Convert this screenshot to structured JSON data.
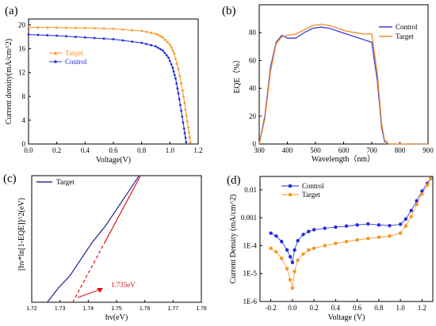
{
  "colors": {
    "target_orange": "#F7941D",
    "control_blue": "#1F2BE0",
    "eqe_control": "#3A3FD6",
    "eqe_target": "#F08A24",
    "fit_red": "#E01010",
    "target_navy": "#2E3192"
  },
  "chart_data": [
    {
      "panel_label": "(a)",
      "type": "line",
      "xlabel": "Voltage(V)",
      "ylabel": "Current density(mA/cm^2)",
      "xlim": [
        0.0,
        1.2
      ],
      "ylim": [
        0,
        21
      ],
      "x_ticks": [
        "0.0",
        "0.2",
        "0.4",
        "0.6",
        "0.8",
        "1.0",
        "1.2"
      ],
      "y_ticks": [
        "0",
        "4",
        "8",
        "12",
        "16",
        "20"
      ],
      "legend": {
        "position": "center-left",
        "entries": [
          "Target",
          "Control"
        ]
      },
      "series": [
        {
          "name": "Target",
          "color_key": "target_orange",
          "marker": "star",
          "x": [
            0.0,
            0.2,
            0.4,
            0.6,
            0.8,
            0.9,
            0.95,
            1.0,
            1.03,
            1.06,
            1.09,
            1.11,
            1.13,
            1.145
          ],
          "y": [
            19.6,
            19.55,
            19.5,
            19.35,
            19.0,
            18.5,
            17.9,
            16.7,
            15.2,
            12.6,
            9.0,
            5.8,
            2.8,
            0.3
          ]
        },
        {
          "name": "Control",
          "color_key": "control_blue",
          "marker": "dot",
          "x": [
            0.0,
            0.2,
            0.4,
            0.6,
            0.8,
            0.9,
            0.95,
            0.99,
            1.02,
            1.04,
            1.06,
            1.08,
            1.1,
            1.115
          ],
          "y": [
            18.4,
            18.2,
            17.9,
            17.6,
            17.0,
            16.4,
            15.7,
            14.5,
            12.8,
            11.0,
            8.5,
            5.6,
            2.6,
            0.3
          ]
        }
      ]
    },
    {
      "panel_label": "(b)",
      "type": "line",
      "xlabel": "Wavelength（nm）",
      "ylabel": "EQE（%）",
      "xlim": [
        300,
        900
      ],
      "ylim": [
        0,
        100
      ],
      "x_ticks": [
        "300",
        "400",
        "500",
        "600",
        "700",
        "800",
        "900"
      ],
      "y_ticks": [
        "0",
        "20",
        "40",
        "60",
        "80"
      ],
      "legend": {
        "position": "top-right",
        "entries": [
          "Control",
          "Target"
        ]
      },
      "series": [
        {
          "name": "Control",
          "color_key": "eqe_control",
          "x": [
            300,
            320,
            340,
            360,
            380,
            400,
            430,
            460,
            490,
            520,
            550,
            580,
            610,
            640,
            670,
            700,
            720,
            735,
            745,
            760,
            800,
            900
          ],
          "y": [
            0,
            20,
            55,
            73,
            78,
            76,
            76,
            80,
            83,
            84,
            83,
            81,
            79,
            77,
            75,
            73,
            45,
            12,
            2,
            0,
            0,
            0
          ]
        },
        {
          "name": "Target",
          "color_key": "eqe_target",
          "x": [
            300,
            320,
            340,
            360,
            380,
            400,
            430,
            460,
            490,
            520,
            550,
            580,
            610,
            640,
            670,
            700,
            720,
            735,
            745,
            760,
            800,
            900
          ],
          "y": [
            0,
            18,
            52,
            72,
            77,
            78,
            79,
            82,
            85,
            86,
            85,
            83,
            81,
            80,
            79,
            79,
            50,
            15,
            3,
            0,
            0,
            0
          ]
        }
      ]
    },
    {
      "panel_label": "(c)",
      "type": "line",
      "xlabel": "hv(eV)",
      "ylabel": "[hv*ln[1-EQE]]^2(eV)",
      "xlim": [
        1.72,
        1.78
      ],
      "x_ticks": [
        "1.72",
        "1.73",
        "1.74",
        "1.75",
        "1.76",
        "1.77",
        "1.78"
      ],
      "legend": {
        "position": "top-left",
        "entries": [
          "Target"
        ]
      },
      "annotation": "1.735eV",
      "series": [
        {
          "name": "Target",
          "color_key": "target_navy",
          "x": [
            1.7255,
            1.7295,
            1.7335,
            1.7375,
            1.7415,
            1.746,
            1.75,
            1.754,
            1.758
          ],
          "y": [
            0.0,
            0.12,
            0.22,
            0.36,
            0.5,
            0.63,
            0.77,
            0.91,
            1.05
          ]
        },
        {
          "name": "fit",
          "color_key": "fit_red",
          "x": [
            1.7345,
            1.7585
          ],
          "y": [
            0.0,
            1.05
          ]
        }
      ]
    },
    {
      "panel_label": "(d)",
      "type": "scatter",
      "xlabel": "Voltage (V)",
      "ylabel": "Current Density (mA/cm^2)",
      "xlim": [
        -0.3,
        1.3
      ],
      "log_y": true,
      "ylim": [
        1e-06,
        0.03
      ],
      "x_ticks": [
        "-0.2",
        "0.0",
        "0.2",
        "0.4",
        "0.6",
        "0.8",
        "1.0",
        "1.2"
      ],
      "y_ticks": [
        "0.01",
        "0.001",
        "1E-4",
        "1E-5",
        "1E-6"
      ],
      "legend": {
        "position": "top-left",
        "entries": [
          "Control",
          "Target"
        ]
      },
      "series": [
        {
          "name": "Control",
          "color_key": "control_blue",
          "x": [
            -0.2,
            -0.15,
            -0.1,
            -0.05,
            -0.02,
            0.0,
            0.02,
            0.05,
            0.1,
            0.15,
            0.2,
            0.3,
            0.4,
            0.5,
            0.6,
            0.7,
            0.8,
            0.9,
            1.0,
            1.05,
            1.1,
            1.15,
            1.2,
            1.25,
            1.28
          ],
          "y": [
            0.00028,
            0.00022,
            0.00014,
            7e-05,
            4e-05,
            2.5e-05,
            7e-05,
            0.00015,
            0.00025,
            0.00032,
            0.00037,
            0.00042,
            0.00046,
            0.0005,
            0.00055,
            0.0006,
            0.00055,
            0.00052,
            0.00058,
            0.0009,
            0.0018,
            0.004,
            0.009,
            0.017,
            0.025
          ]
        },
        {
          "name": "Target",
          "color_key": "target_orange",
          "x": [
            -0.2,
            -0.15,
            -0.1,
            -0.05,
            -0.02,
            0.0,
            0.02,
            0.05,
            0.1,
            0.15,
            0.2,
            0.3,
            0.4,
            0.5,
            0.6,
            0.7,
            0.8,
            0.9,
            1.0,
            1.05,
            1.1,
            1.15,
            1.2,
            1.25,
            1.28
          ],
          "y": [
            8e-05,
            6e-05,
            3.5e-05,
            1.5e-05,
            6e-06,
            3e-06,
            1.2e-05,
            3e-05,
            5e-05,
            7e-05,
            8e-05,
            0.0001,
            0.00012,
            0.00014,
            0.00016,
            0.00018,
            0.0002,
            0.00022,
            0.00028,
            0.0005,
            0.0011,
            0.003,
            0.007,
            0.015,
            0.025
          ]
        }
      ]
    }
  ]
}
